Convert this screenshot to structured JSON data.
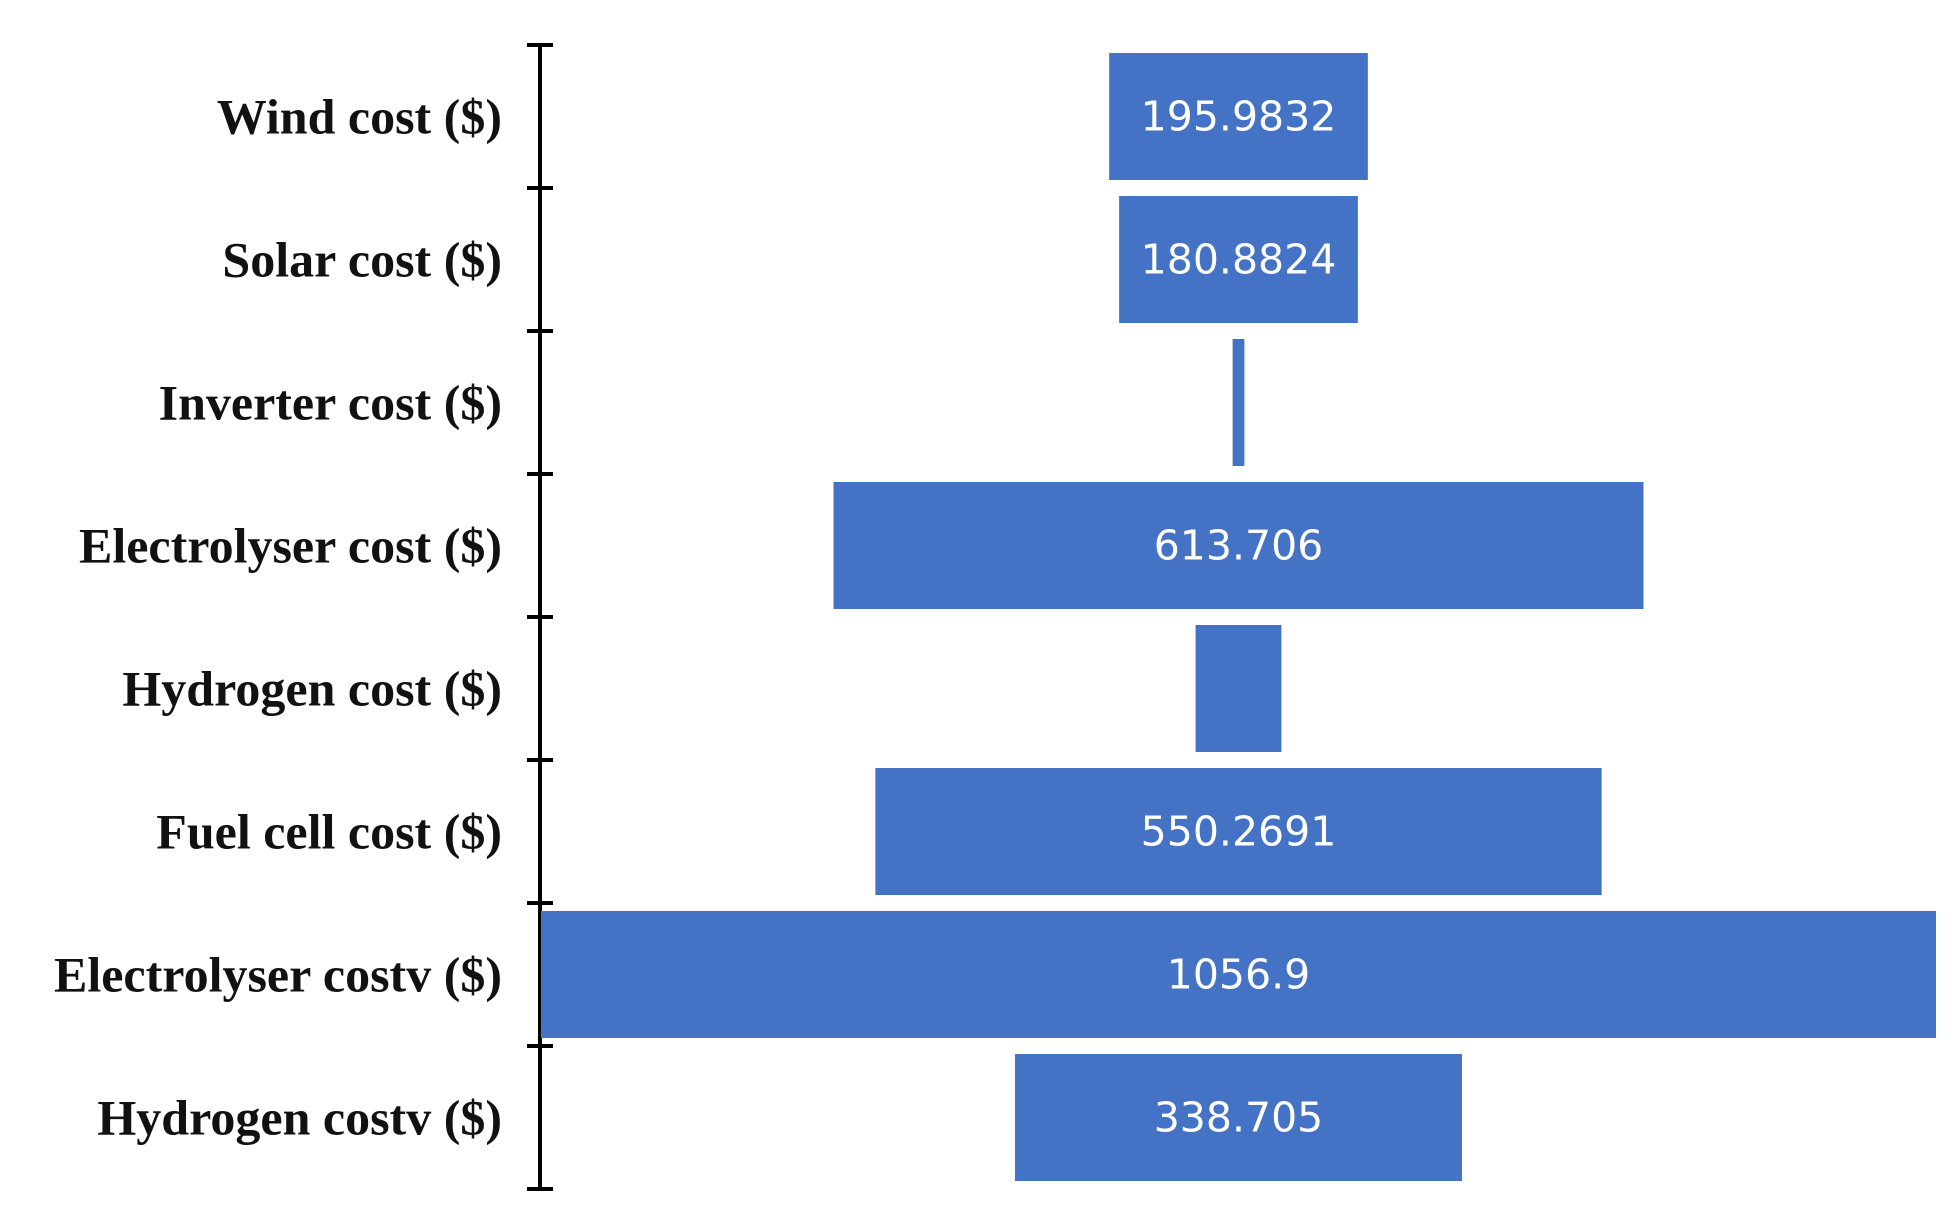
{
  "chart_data": {
    "type": "bar",
    "orientation": "horizontal",
    "layout": "funnel-centered",
    "categories": [
      "Wind cost ($)",
      "Solar cost ($)",
      "Inverter cost ($)",
      "Electrolyser cost ($)",
      "Hydrogen cost ($)",
      "Fuel cell cost ($)",
      "Electrolyser costv ($)",
      "Hydrogen costv ($)"
    ],
    "values": [
      195.9832,
      180.8824,
      8.9,
      613.706,
      65.0,
      550.2691,
      1056.9,
      338.705
    ],
    "data_labels": [
      "195.9832",
      "180.8824",
      "",
      "613.706",
      "",
      "550.2691",
      "1056.9",
      "338.705"
    ],
    "xlim": [
      0,
      1056.9
    ],
    "bar_color": "#4472C4",
    "label_color": "#ffffff",
    "title": "",
    "xlabel": "",
    "ylabel": "",
    "grid": false,
    "legend": false
  }
}
